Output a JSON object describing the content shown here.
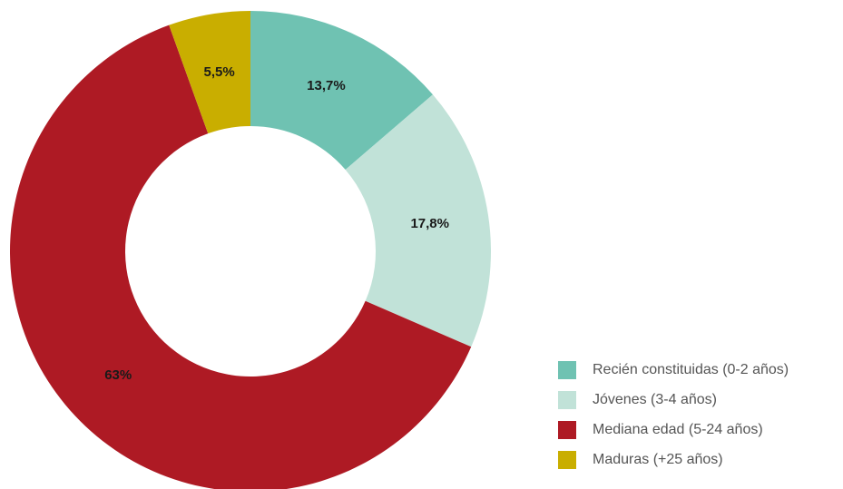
{
  "chart_data": {
    "type": "donut",
    "categories": [
      "Recién constituidas (0-2 años)",
      "Jóvenes (3-4 años)",
      "Mediana edad (5-24 años)",
      "Maduras (+25 años)"
    ],
    "values": [
      13.7,
      17.8,
      63,
      5.5
    ],
    "value_labels": [
      "13,7%",
      "17,8%",
      "63%",
      "5,5%"
    ],
    "colors": [
      "#6fc2b2",
      "#c1e2d8",
      "#ae1a24",
      "#c9ae00"
    ],
    "legend": "bottom-right"
  }
}
